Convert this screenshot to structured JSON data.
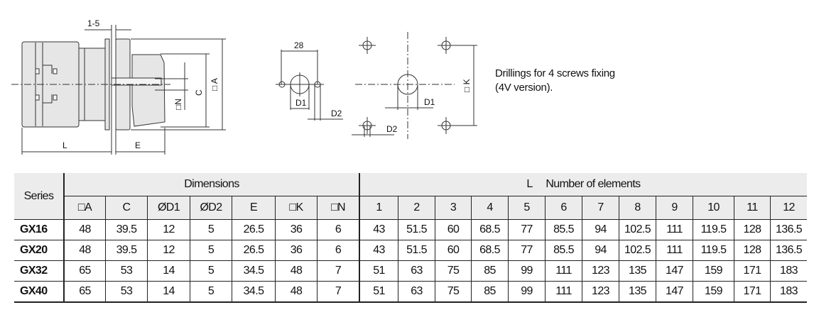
{
  "drawing": {
    "labels": {
      "gap": "1-5",
      "L": "L",
      "E": "E",
      "C": "C",
      "A": "□ A",
      "N": "□N",
      "d28": "28",
      "D1a": "D1",
      "D2a": "D2",
      "D1b": "D1",
      "D2b": "D2",
      "K": "□ K"
    }
  },
  "note": {
    "line1": "Drillings for 4 screws fixing",
    "line2": "(4V version)."
  },
  "table": {
    "series_header": "Series",
    "dimensions_header": "Dimensions",
    "elements_header": "L     Number of elements",
    "dimension_columns": [
      "□A",
      "C",
      "ØD1",
      "ØD2",
      "E",
      "□K",
      "□N"
    ],
    "element_columns": [
      "1",
      "2",
      "3",
      "4",
      "5",
      "6",
      "7",
      "8",
      "9",
      "10",
      "11",
      "12"
    ],
    "rows": [
      {
        "series": "GX16",
        "dims": [
          "48",
          "39.5",
          "12",
          "5",
          "26.5",
          "36",
          "6"
        ],
        "L": [
          "43",
          "51.5",
          "60",
          "68.5",
          "77",
          "85.5",
          "94",
          "102.5",
          "111",
          "119.5",
          "128",
          "136.5"
        ]
      },
      {
        "series": "GX20",
        "dims": [
          "48",
          "39.5",
          "12",
          "5",
          "26.5",
          "36",
          "6"
        ],
        "L": [
          "43",
          "51.5",
          "60",
          "68.5",
          "77",
          "85.5",
          "94",
          "102.5",
          "111",
          "119.5",
          "128",
          "136.5"
        ]
      },
      {
        "series": "GX32",
        "dims": [
          "65",
          "53",
          "14",
          "5",
          "34.5",
          "48",
          "7"
        ],
        "L": [
          "51",
          "63",
          "75",
          "85",
          "99",
          "111",
          "123",
          "135",
          "147",
          "159",
          "171",
          "183"
        ]
      },
      {
        "series": "GX40",
        "dims": [
          "65",
          "53",
          "14",
          "5",
          "34.5",
          "48",
          "7"
        ],
        "L": [
          "51",
          "63",
          "75",
          "85",
          "99",
          "111",
          "123",
          "135",
          "147",
          "159",
          "171",
          "183"
        ]
      }
    ]
  }
}
